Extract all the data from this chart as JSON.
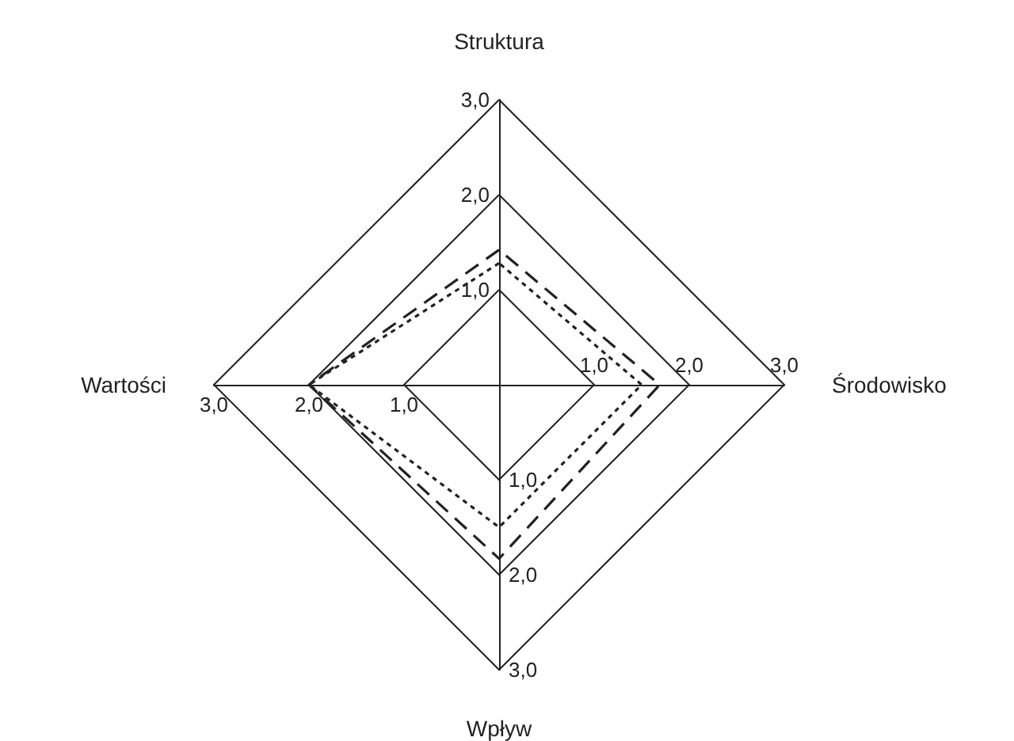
{
  "chart_data": {
    "type": "radar",
    "categories": [
      "Struktura",
      "Środowisko",
      "Wpływ",
      "Wartości"
    ],
    "series": [
      {
        "color": "#222222",
        "line_style": "dashed",
        "values": [
          1.42,
          1.69,
          1.83,
          2.0
        ]
      },
      {
        "color": "#222222",
        "line_style": "dotted",
        "values": [
          1.28,
          1.5,
          1.5,
          2.0
        ]
      }
    ],
    "ylim": [
      0,
      3
    ],
    "yticks": [
      {
        "value": 1,
        "label": "1,0"
      },
      {
        "value": 2,
        "label": "2,0"
      },
      {
        "value": 3,
        "label": "3,0"
      }
    ],
    "grid": true,
    "marker": "none"
  }
}
